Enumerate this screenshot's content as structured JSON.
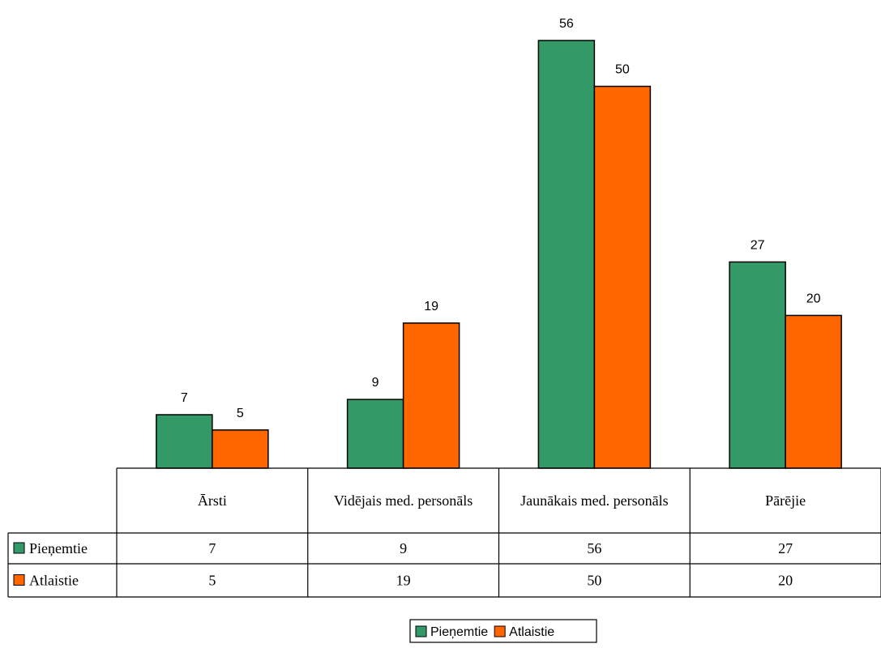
{
  "colors": {
    "series_0": "#339966",
    "series_1": "#FF6600",
    "border": "#000000"
  },
  "chart_data": {
    "type": "bar",
    "categories": [
      "Ārsti",
      "Vidējais med. personāls",
      "Jaunākais med. personāls",
      "Pārējie"
    ],
    "series": [
      {
        "name": "Pieņemtie",
        "values": [
          7,
          9,
          56,
          27
        ]
      },
      {
        "name": "Atlaistie",
        "values": [
          5,
          19,
          50,
          20
        ]
      }
    ],
    "data_table": true,
    "legend_position": "bottom",
    "gridlines": false
  }
}
